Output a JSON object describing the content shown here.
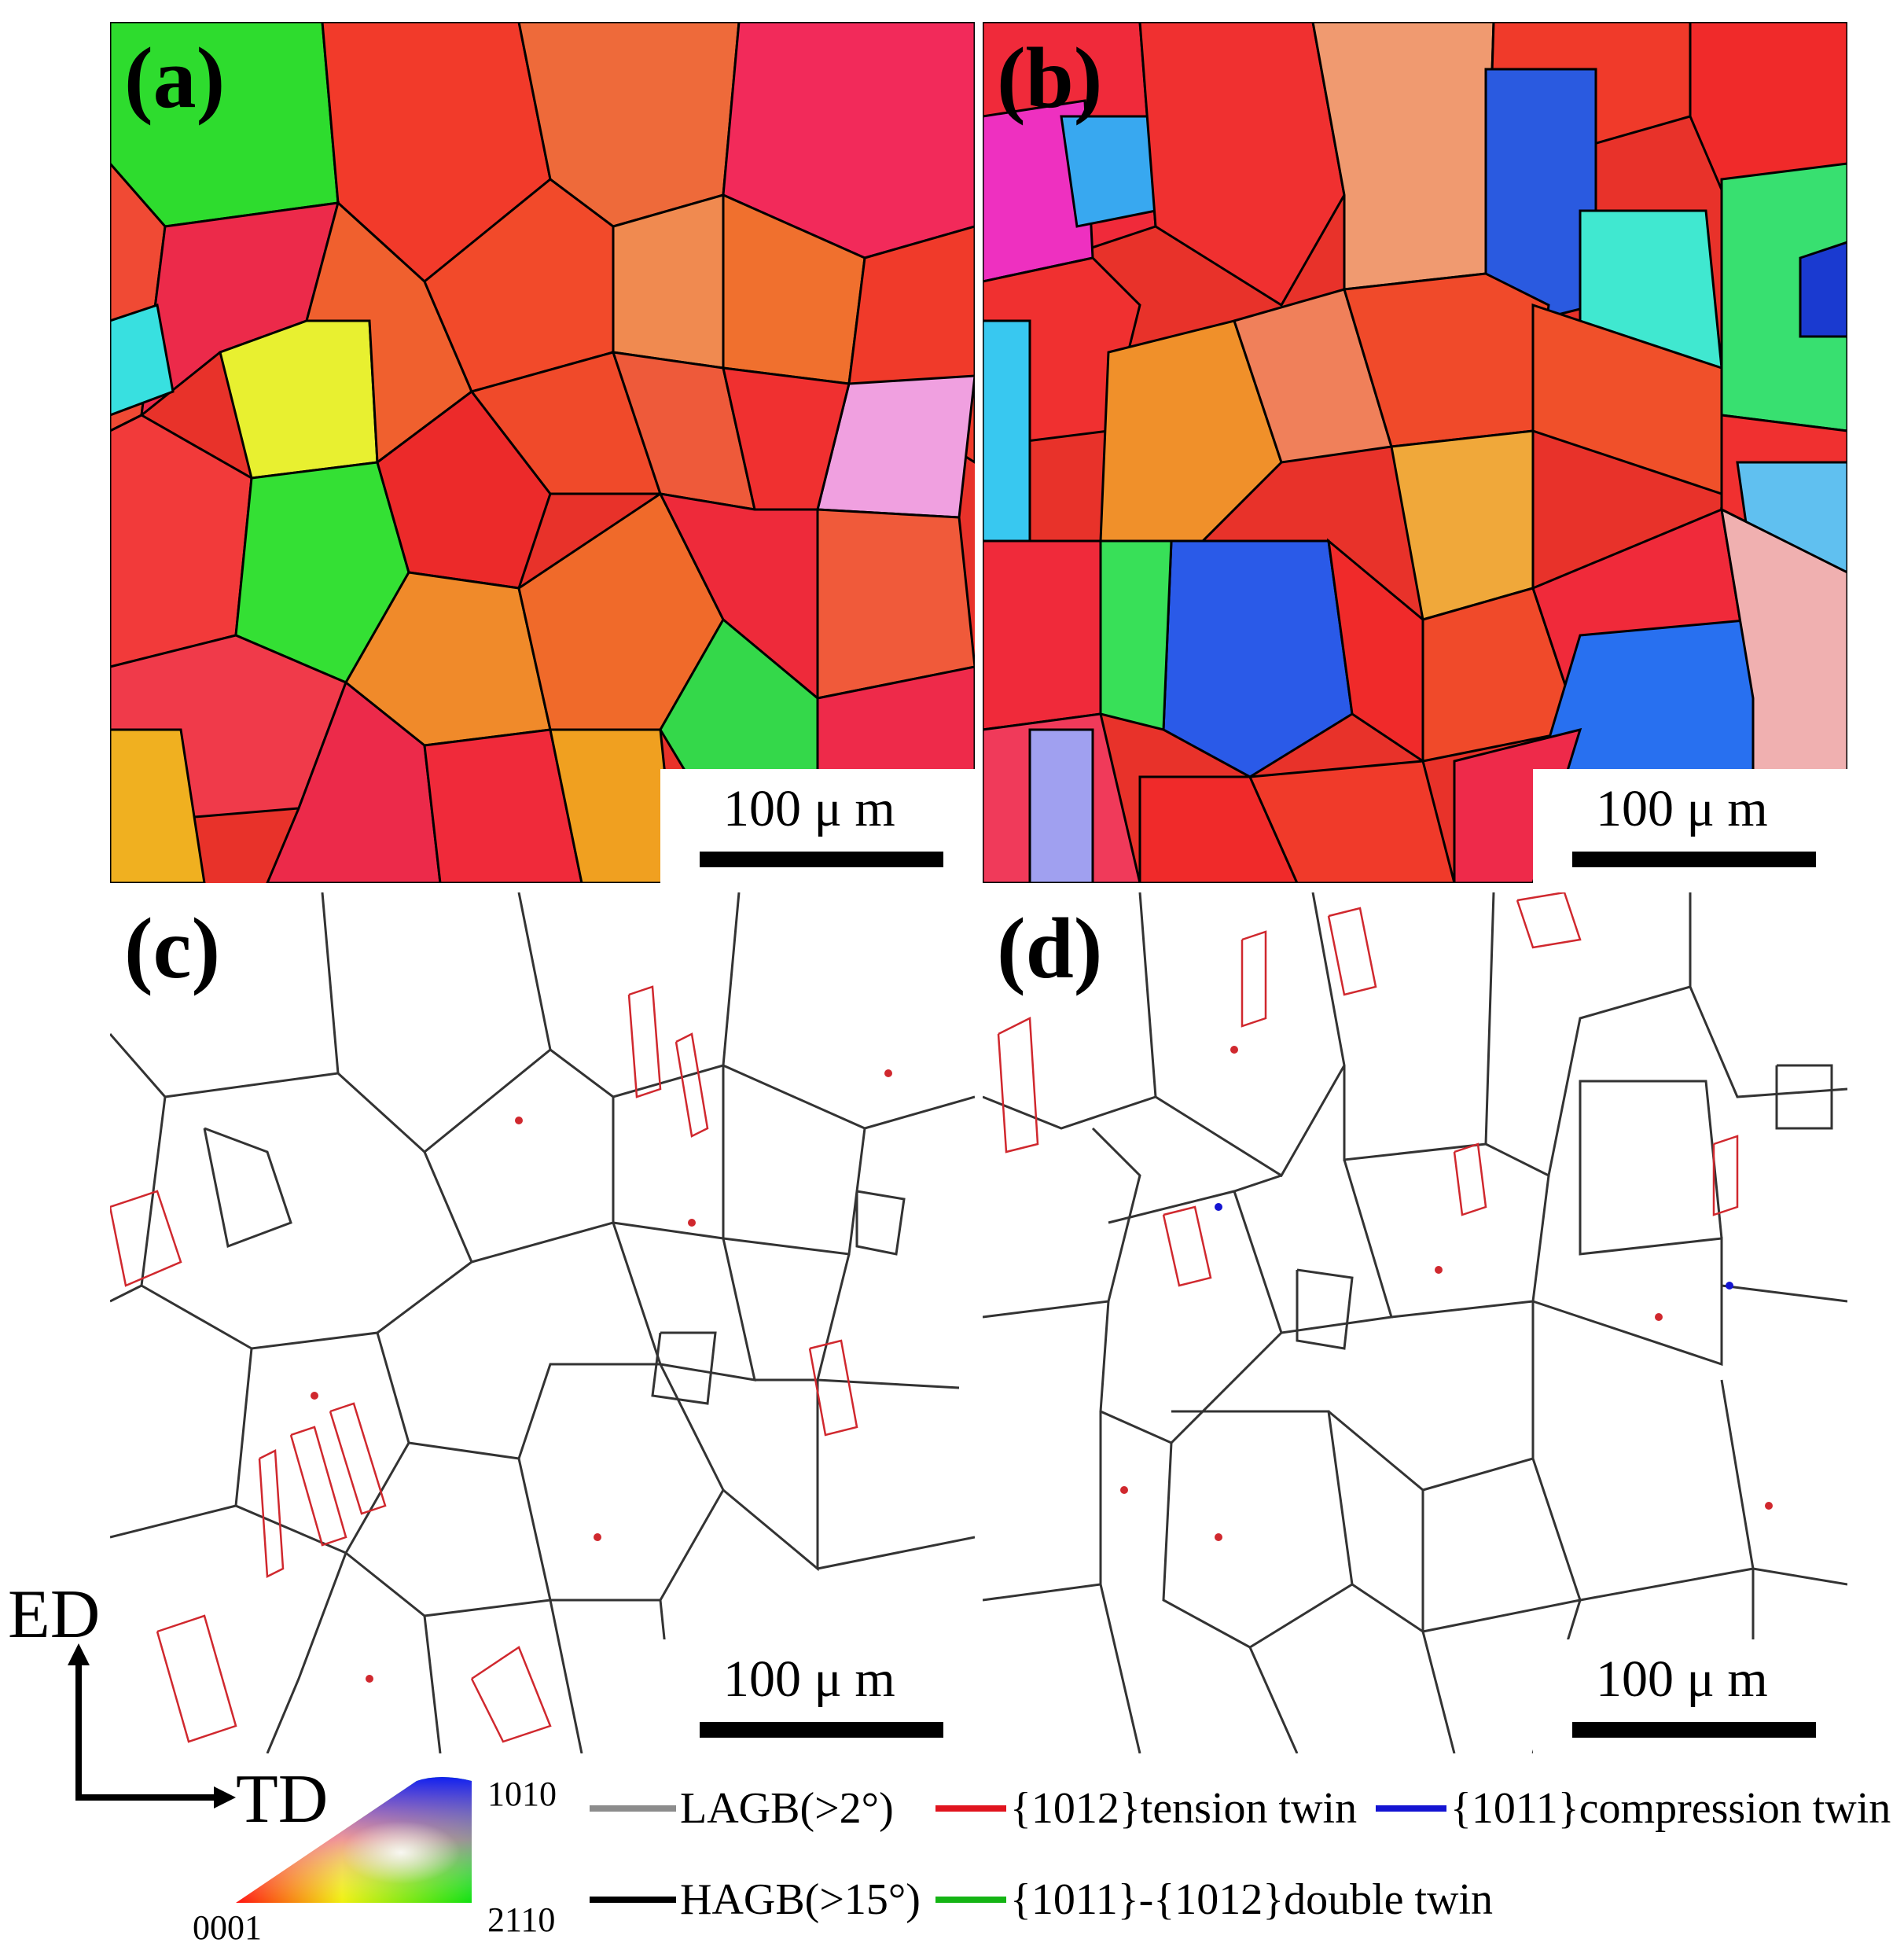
{
  "panels": [
    {
      "label": "(a)",
      "scale": "100 μ m"
    },
    {
      "label": "(b)",
      "scale": "100 μ m"
    },
    {
      "label": "(c)",
      "scale": "100 μ m"
    },
    {
      "label": "(d)",
      "scale": "100 μ m"
    }
  ],
  "axes": {
    "vertical": "ED",
    "horizontal": "TD"
  },
  "ipf": {
    "corner_top": "1010",
    "corner_bottom_left": "0001",
    "corner_bottom_right": "2110"
  },
  "legend": {
    "lagb": "LAGB(>2°)",
    "hagb": "HAGB(>15°)",
    "tension": "{1012}tension twin",
    "compression": "{1011}compression twin",
    "double": "{1011}-{1012}double twin"
  },
  "colors": {
    "lagb": "#8c8c8c",
    "hagb": "#000000",
    "tension": "#e0141e",
    "compression": "#1414d2",
    "double": "#14b414"
  }
}
